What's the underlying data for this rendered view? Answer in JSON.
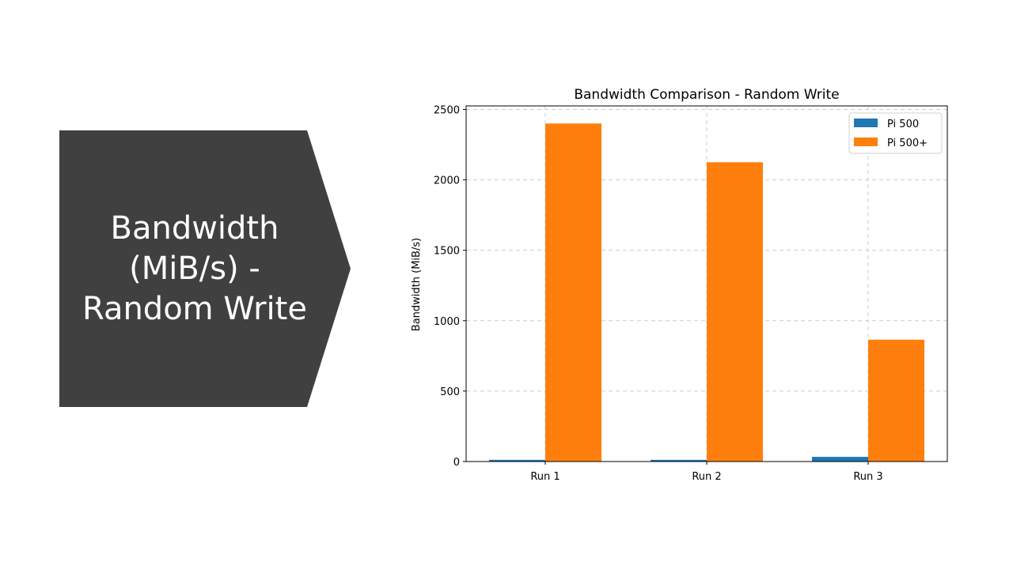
{
  "slide": {
    "chevron_label": "Bandwidth (MiB/s) - Random Write",
    "chevron_color": "#404040"
  },
  "chart_data": {
    "type": "bar",
    "title": "Bandwidth Comparison - Random Write",
    "xlabel": "",
    "ylabel": "Bandwidth (MiB/s)",
    "categories": [
      "Run 1",
      "Run 2",
      "Run 3"
    ],
    "series": [
      {
        "name": "Pi 500",
        "color": "#1f77b4",
        "values": [
          12,
          12,
          33
        ]
      },
      {
        "name": "Pi 500+",
        "color": "#ff7f0e",
        "values": [
          2400,
          2125,
          865
        ]
      }
    ],
    "ylim": [
      0,
      2525
    ],
    "yticks": [
      0,
      500,
      1000,
      1500,
      2000,
      2500
    ],
    "grid": true,
    "legend": "top-right"
  }
}
